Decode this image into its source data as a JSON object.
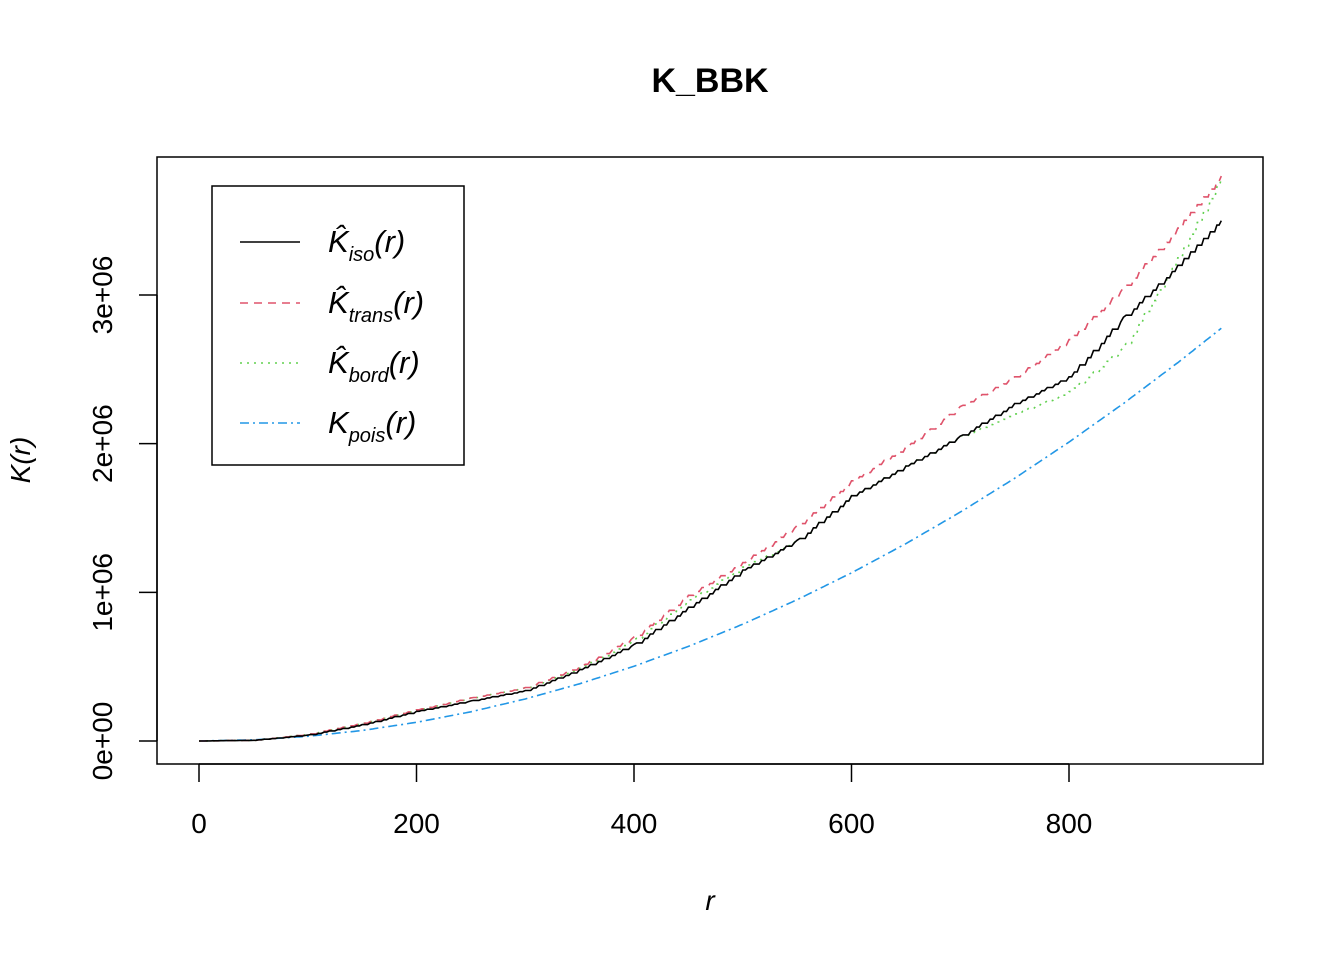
{
  "chart_data": {
    "type": "line",
    "title": "K_BBK",
    "xlabel": "r",
    "ylabel": "K(r)",
    "xlim": [
      0,
      940
    ],
    "ylim": [
      0,
      3800000
    ],
    "x_ticks": [
      0,
      200,
      400,
      600,
      800
    ],
    "x_tick_labels": [
      "0",
      "200",
      "400",
      "600",
      "800"
    ],
    "y_ticks": [
      0,
      1000000,
      2000000,
      3000000
    ],
    "y_tick_labels": [
      "0e+00",
      "1e+06",
      "2e+06",
      "3e+06"
    ],
    "grid": false,
    "legend_position": "top-left",
    "x": [
      0,
      50,
      100,
      150,
      200,
      250,
      300,
      350,
      400,
      450,
      500,
      550,
      600,
      650,
      700,
      750,
      800,
      850,
      900,
      940
    ],
    "series": [
      {
        "name": "K̂iso(r)",
        "label_main": "K̂",
        "label_sub": "iso",
        "label_suffix": "(r)",
        "color": "#000000",
        "dash": "none",
        "values": [
          0,
          5000,
          40000,
          110000,
          200000,
          270000,
          340000,
          480000,
          650000,
          900000,
          1150000,
          1350000,
          1650000,
          1850000,
          2050000,
          2270000,
          2450000,
          2850000,
          3200000,
          3500000
        ]
      },
      {
        "name": "K̂trans(r)",
        "label_main": "K̂",
        "label_sub": "trans",
        "label_suffix": "(r)",
        "color": "#DF536B",
        "dash": "8,6",
        "values": [
          0,
          5000,
          45000,
          120000,
          210000,
          290000,
          360000,
          500000,
          700000,
          980000,
          1200000,
          1450000,
          1750000,
          1980000,
          2250000,
          2450000,
          2700000,
          3050000,
          3450000,
          3800000
        ]
      },
      {
        "name": "K̂bord(r)",
        "label_main": "K̂",
        "label_sub": "bord",
        "label_suffix": "(r)",
        "color": "#61D04F",
        "dash": "2,5",
        "values": [
          0,
          5000,
          45000,
          120000,
          210000,
          290000,
          360000,
          490000,
          680000,
          950000,
          1170000,
          1350000,
          1650000,
          1850000,
          2050000,
          2200000,
          2350000,
          2650000,
          3250000,
          3780000
        ]
      },
      {
        "name": "Kpois(r)",
        "label_main": "K",
        "label_sub": "pois",
        "label_suffix": "(r)",
        "color": "#2297E6",
        "dash": "9,4,2,4",
        "values": [
          0,
          7854,
          31416,
          70686,
          125664,
          196350,
          282743,
          384845,
          502655,
          636173,
          785398,
          950332,
          1130973,
          1327323,
          1539380,
          1767146,
          2010619,
          2269801,
          2544690,
          2775907
        ]
      }
    ]
  }
}
